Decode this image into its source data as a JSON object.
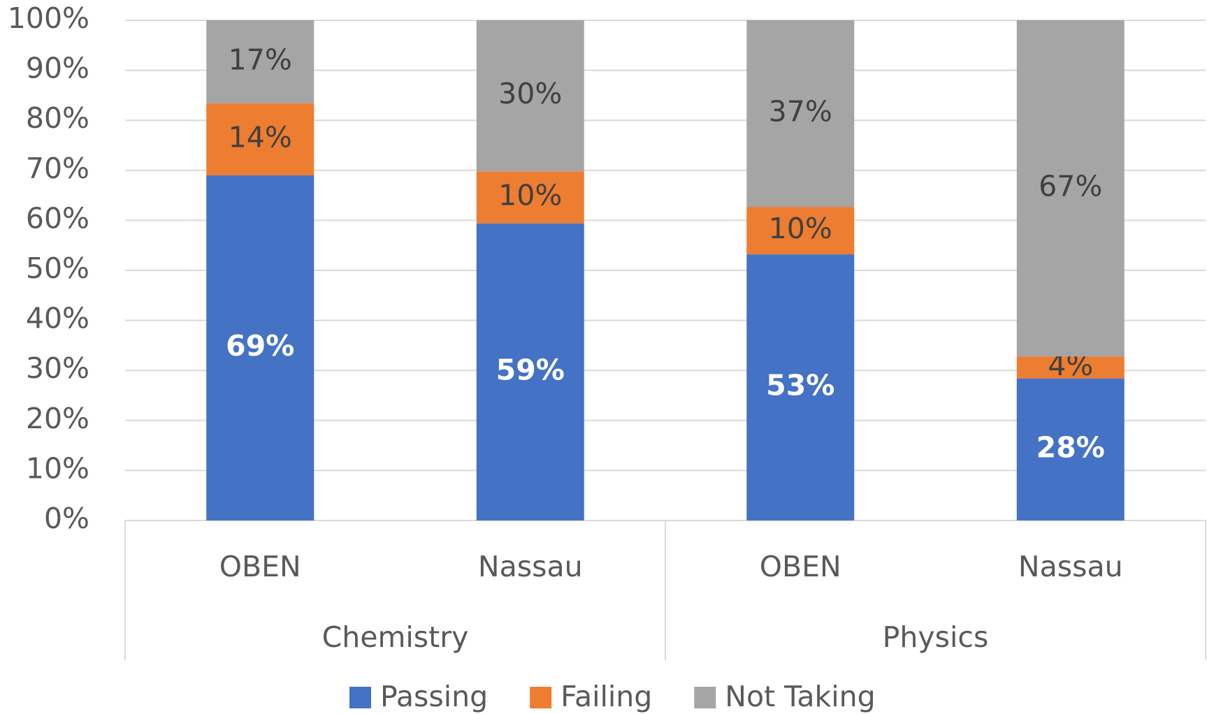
{
  "chart_data": {
    "type": "stacked_bar",
    "categories": [
      "OBEN",
      "Nassau",
      "OBEN",
      "Nassau"
    ],
    "groups": [
      "Chemistry",
      "Physics"
    ],
    "series": [
      {
        "name": "Passing",
        "color": "#4472c4",
        "values": [
          69,
          59.4,
          53.2,
          28.4
        ],
        "value_labels": [
          "69%",
          "59%",
          "53%",
          "28%"
        ]
      },
      {
        "name": "Failing",
        "color": "#ed7d31",
        "values": [
          14.4,
          10.4,
          9.5,
          4.4
        ],
        "value_labels": [
          "14%",
          "10%",
          "10%",
          "4%"
        ]
      },
      {
        "name": "Not Taking",
        "color": "#a5a5a5",
        "values": [
          16.6,
          30.2,
          37.3,
          67.2
        ],
        "value_labels": [
          "17%",
          "30%",
          "37%",
          "67%"
        ]
      }
    ],
    "ylim": [
      0,
      100
    ],
    "yticks": [
      {
        "value": 0,
        "label": "0%"
      },
      {
        "value": 10,
        "label": "10%"
      },
      {
        "value": 20,
        "label": "20%"
      },
      {
        "value": 30,
        "label": "30%"
      },
      {
        "value": 40,
        "label": "40%"
      },
      {
        "value": 50,
        "label": "50%"
      },
      {
        "value": 60,
        "label": "60%"
      },
      {
        "value": 70,
        "label": "70%"
      },
      {
        "value": 80,
        "label": "80%"
      },
      {
        "value": 90,
        "label": "90%"
      },
      {
        "value": 100,
        "label": "100%"
      }
    ],
    "grid": true,
    "legend": "bottom"
  }
}
